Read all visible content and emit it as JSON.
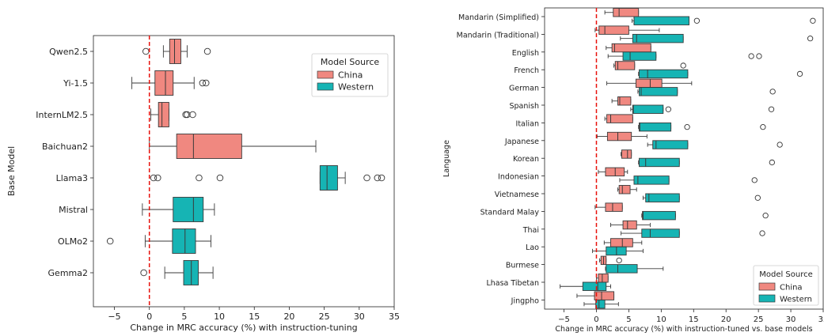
{
  "colors": {
    "china": "#f08880",
    "western": "#16b4b4",
    "zero_line": "#e8120c"
  },
  "chart_data": [
    {
      "type": "boxplot",
      "orientation": "horizontal",
      "ylabel": "Base Model",
      "xlabel": "Change in MRC accuracy (%) with instruction-tuning",
      "xlim": [
        -8,
        35
      ],
      "xticks": [
        -5,
        0,
        5,
        10,
        15,
        20,
        25,
        30,
        35
      ],
      "xtick_labels": [
        "−5",
        "0",
        "5",
        "10",
        "15",
        "20",
        "25",
        "30",
        "35"
      ],
      "reference_line_x": 0,
      "legend": {
        "title": "Model Source",
        "entries": [
          "China",
          "Western"
        ],
        "placement": "top-right"
      },
      "categories": [
        "Qwen2.5",
        "Yi-1.5",
        "InternLM2.5",
        "Baichuan2",
        "Llama3",
        "Mistral",
        "OLMo2",
        "Gemma2"
      ],
      "boxes": [
        {
          "category": "Qwen2.5",
          "source": "China",
          "whisker_low": 2.0,
          "q1": 2.9,
          "median": 3.6,
          "q3": 4.5,
          "whisker_high": 5.4,
          "outliers": [
            -0.5,
            8.3
          ]
        },
        {
          "category": "Yi-1.5",
          "source": "China",
          "whisker_low": -2.5,
          "q1": 0.8,
          "median": 2.3,
          "q3": 3.4,
          "whisker_high": 6.4,
          "outliers": [
            7.6,
            8.1
          ]
        },
        {
          "category": "InternLM2.5",
          "source": "China",
          "whisker_low": 0.2,
          "q1": 1.3,
          "median": 1.8,
          "q3": 2.8,
          "whisker_high": 2.8,
          "outliers": [
            5.2,
            5.4,
            6.2
          ]
        },
        {
          "category": "Baichuan2",
          "source": "China",
          "whisker_low": 0.0,
          "q1": 3.9,
          "median": 6.3,
          "q3": 13.2,
          "whisker_high": 23.8,
          "outliers": []
        },
        {
          "category": "Llama3",
          "source": "Western",
          "whisker_low": 24.4,
          "q1": 24.4,
          "median": 25.4,
          "q3": 26.9,
          "whisker_high": 28.0,
          "outliers": [
            0.6,
            1.2,
            7.1,
            10.1,
            31.1,
            32.6,
            33.2
          ]
        },
        {
          "category": "Mistral",
          "source": "Western",
          "whisker_low": -1.0,
          "q1": 3.4,
          "median": 6.3,
          "q3": 7.7,
          "whisker_high": 9.3,
          "outliers": []
        },
        {
          "category": "OLMo2",
          "source": "Western",
          "whisker_low": -0.6,
          "q1": 3.3,
          "median": 5.1,
          "q3": 6.6,
          "whisker_high": 8.8,
          "outliers": [
            -5.6
          ]
        },
        {
          "category": "Gemma2",
          "source": "Western",
          "whisker_low": 2.2,
          "q1": 4.9,
          "median": 6.0,
          "q3": 7.0,
          "whisker_high": 9.1,
          "outliers": [
            -0.8
          ]
        }
      ]
    },
    {
      "type": "boxplot",
      "orientation": "horizontal",
      "ylabel": "Language",
      "xlabel": "Change in MRC accuracy (%) with instruction-tuned vs. base models",
      "xlim": [
        -8,
        35
      ],
      "xticks": [
        -5,
        0,
        5,
        10,
        15,
        20,
        25,
        30,
        35
      ],
      "xtick_labels": [
        "−5",
        "0",
        "5",
        "10",
        "15",
        "20",
        "25",
        "30",
        "35"
      ],
      "reference_line_x": 0,
      "legend": {
        "title": "Model Source",
        "entries": [
          "China",
          "Western"
        ],
        "placement": "bottom-right"
      },
      "categories": [
        "Mandarin (Simplified)",
        "Mandarin (Traditional)",
        "English",
        "French",
        "German",
        "Spanish",
        "Italian",
        "Japanese",
        "Korean",
        "Indonesian",
        "Vietnamese",
        "Standard Malay",
        "Thai",
        "Lao",
        "Burmese",
        "Lhasa Tibetan",
        "Jingpho"
      ],
      "boxes": [
        {
          "category": "Mandarin (Simplified)",
          "source": "China",
          "whisker_low": 1.3,
          "q1": 2.6,
          "median": 3.5,
          "q3": 6.5,
          "whisker_high": 6.5,
          "outliers": []
        },
        {
          "category": "Mandarin (Simplified)",
          "source": "Western",
          "whisker_low": 5.5,
          "q1": 5.8,
          "median": 5.8,
          "q3": 14.3,
          "whisker_high": 14.3,
          "outliers": [
            15.5,
            33.4
          ]
        },
        {
          "category": "Mandarin (Traditional)",
          "source": "China",
          "whisker_low": -0.2,
          "q1": 0.4,
          "median": 1.3,
          "q3": 5.0,
          "whisker_high": 9.7,
          "outliers": []
        },
        {
          "category": "Mandarin (Traditional)",
          "source": "Western",
          "whisker_low": 3.7,
          "q1": 5.6,
          "median": 6.2,
          "q3": 13.4,
          "whisker_high": 13.4,
          "outliers": [
            33.0
          ]
        },
        {
          "category": "English",
          "source": "China",
          "whisker_low": 1.5,
          "q1": 2.4,
          "median": 2.8,
          "q3": 8.4,
          "whisker_high": 8.4,
          "outliers": []
        },
        {
          "category": "English",
          "source": "Western",
          "whisker_low": 1.8,
          "q1": 4.1,
          "median": 5.2,
          "q3": 9.2,
          "whisker_high": 9.2,
          "outliers": [
            23.9,
            25.1
          ]
        },
        {
          "category": "French",
          "source": "China",
          "whisker_low": 2.7,
          "q1": 2.9,
          "median": 3.3,
          "q3": 5.9,
          "whisker_high": 5.9,
          "outliers": [
            13.4
          ]
        },
        {
          "category": "French",
          "source": "Western",
          "whisker_low": 6.5,
          "q1": 6.6,
          "median": 7.9,
          "q3": 14.1,
          "whisker_high": 14.1,
          "outliers": [
            31.4
          ]
        },
        {
          "category": "German",
          "source": "China",
          "whisker_low": 1.6,
          "q1": 6.1,
          "median": 8.3,
          "q3": 10.1,
          "whisker_high": 14.7,
          "outliers": []
        },
        {
          "category": "German",
          "source": "Western",
          "whisker_low": 6.4,
          "q1": 6.6,
          "median": 6.9,
          "q3": 12.5,
          "whisker_high": 12.5,
          "outliers": [
            27.2
          ]
        },
        {
          "category": "Spanish",
          "source": "China",
          "whisker_low": 2.4,
          "q1": 3.3,
          "median": 3.6,
          "q3": 5.3,
          "whisker_high": 5.3,
          "outliers": []
        },
        {
          "category": "Spanish",
          "source": "Western",
          "whisker_low": 5.3,
          "q1": 5.6,
          "median": 5.7,
          "q3": 10.3,
          "whisker_high": 10.3,
          "outliers": [
            11.1,
            27.0
          ]
        },
        {
          "category": "Italian",
          "source": "China",
          "whisker_low": 1.3,
          "q1": 1.6,
          "median": 2.2,
          "q3": 5.6,
          "whisker_high": 5.6,
          "outliers": []
        },
        {
          "category": "Italian",
          "source": "Western",
          "whisker_low": 6.5,
          "q1": 6.6,
          "median": 6.7,
          "q3": 11.5,
          "whisker_high": 11.5,
          "outliers": [
            14.0,
            25.7
          ]
        },
        {
          "category": "Japanese",
          "source": "China",
          "whisker_low": 0.1,
          "q1": 1.7,
          "median": 3.3,
          "q3": 5.4,
          "whisker_high": 7.8,
          "outliers": []
        },
        {
          "category": "Japanese",
          "source": "Western",
          "whisker_low": 7.9,
          "q1": 8.7,
          "median": 9.2,
          "q3": 14.1,
          "whisker_high": 14.1,
          "outliers": [
            28.3
          ]
        },
        {
          "category": "Korean",
          "source": "China",
          "whisker_low": 3.8,
          "q1": 3.9,
          "median": 4.8,
          "q3": 5.4,
          "whisker_high": 5.4,
          "outliers": []
        },
        {
          "category": "Korean",
          "source": "Western",
          "whisker_low": 6.5,
          "q1": 6.6,
          "median": 7.6,
          "q3": 12.8,
          "whisker_high": 12.8,
          "outliers": [
            27.1
          ]
        },
        {
          "category": "Indonesian",
          "source": "China",
          "whisker_low": 0.3,
          "q1": 1.4,
          "median": 2.9,
          "q3": 4.3,
          "whisker_high": 4.8,
          "outliers": []
        },
        {
          "category": "Indonesian",
          "source": "Western",
          "whisker_low": 3.6,
          "q1": 5.8,
          "median": 6.4,
          "q3": 11.2,
          "whisker_high": 11.2,
          "outliers": [
            24.4
          ]
        },
        {
          "category": "Vietnamese",
          "source": "China",
          "whisker_low": 3.3,
          "q1": 3.5,
          "median": 4.0,
          "q3": 5.2,
          "whisker_high": 6.2,
          "outliers": []
        },
        {
          "category": "Vietnamese",
          "source": "Western",
          "whisker_low": 7.2,
          "q1": 7.6,
          "median": 8.1,
          "q3": 12.8,
          "whisker_high": 12.8,
          "outliers": [
            24.9
          ]
        },
        {
          "category": "Standard Malay",
          "source": "China",
          "whisker_low": -0.2,
          "q1": 1.4,
          "median": 2.5,
          "q3": 4.0,
          "whisker_high": 4.0,
          "outliers": []
        },
        {
          "category": "Standard Malay",
          "source": "Western",
          "whisker_low": 7.0,
          "q1": 7.1,
          "median": 7.2,
          "q3": 12.2,
          "whisker_high": 12.2,
          "outliers": [
            26.1
          ]
        },
        {
          "category": "Thai",
          "source": "China",
          "whisker_low": 2.2,
          "q1": 4.1,
          "median": 4.8,
          "q3": 6.2,
          "whisker_high": 8.3,
          "outliers": []
        },
        {
          "category": "Thai",
          "source": "Western",
          "whisker_low": 3.8,
          "q1": 7.0,
          "median": 8.3,
          "q3": 12.8,
          "whisker_high": 12.8,
          "outliers": [
            25.6
          ]
        },
        {
          "category": "Lao",
          "source": "China",
          "whisker_low": 1.2,
          "q1": 2.2,
          "median": 4.0,
          "q3": 5.6,
          "whisker_high": 7.0,
          "outliers": []
        },
        {
          "category": "Lao",
          "source": "Western",
          "whisker_low": -0.6,
          "q1": 1.5,
          "median": 3.1,
          "q3": 4.6,
          "whisker_high": 7.2,
          "outliers": []
        },
        {
          "category": "Burmese",
          "source": "China",
          "whisker_low": 0.5,
          "q1": 0.7,
          "median": 1.1,
          "q3": 1.5,
          "whisker_high": 1.5,
          "outliers": [
            3.5
          ]
        },
        {
          "category": "Burmese",
          "source": "Western",
          "whisker_low": 1.4,
          "q1": 1.5,
          "median": 3.3,
          "q3": 6.3,
          "whisker_high": 10.3,
          "outliers": []
        },
        {
          "category": "Lhasa Tibetan",
          "source": "China",
          "whisker_low": 0.0,
          "q1": 0.3,
          "median": 0.9,
          "q3": 1.8,
          "whisker_high": 1.8,
          "outliers": []
        },
        {
          "category": "Lhasa Tibetan",
          "source": "Western",
          "whisker_low": -5.6,
          "q1": -2.1,
          "median": 0.2,
          "q3": 1.5,
          "whisker_high": 2.2,
          "outliers": []
        },
        {
          "category": "Jingpho",
          "source": "China",
          "whisker_low": -3.0,
          "q1": -0.3,
          "median": 0.8,
          "q3": 2.7,
          "whisker_high": 2.7,
          "outliers": []
        },
        {
          "category": "Jingpho",
          "source": "Western",
          "whisker_low": -1.9,
          "q1": -0.1,
          "median": 0.4,
          "q3": 1.3,
          "whisker_high": 3.4,
          "outliers": []
        }
      ]
    }
  ]
}
